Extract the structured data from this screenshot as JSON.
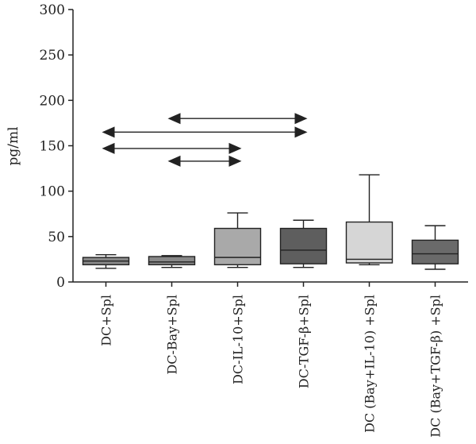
{
  "chart_data": {
    "type": "box",
    "ylabel": "pg/ml",
    "ylim": [
      0,
      300
    ],
    "yticks": [
      0,
      50,
      100,
      150,
      200,
      250,
      300
    ],
    "grid": false,
    "legend": "none",
    "categories": [
      "DC+Spl",
      "DC-Bay+Spl",
      "DC-IL-10+Spl",
      "DC-TGF-β+Spl",
      "DC (Bay+IL-10) +Spl",
      "DC (Bay+TGF-β) +Spl"
    ],
    "boxes": [
      {
        "min": 15,
        "q1": 19,
        "median": 23,
        "q3": 27,
        "max": 30,
        "color": "#888888"
      },
      {
        "min": 16,
        "q1": 19,
        "median": 22,
        "q3": 28,
        "max": 29,
        "color": "#888888"
      },
      {
        "min": 16,
        "q1": 19,
        "median": 27,
        "q3": 59,
        "max": 76,
        "color": "#a9a9a9"
      },
      {
        "min": 16,
        "q1": 20,
        "median": 35,
        "q3": 59,
        "max": 68,
        "color": "#5e5e5e"
      },
      {
        "min": 19,
        "q1": 21,
        "median": 25,
        "q3": 66,
        "max": 118,
        "color": "#d6d6d6"
      },
      {
        "min": 14,
        "q1": 20,
        "median": 31,
        "q3": 46,
        "max": 62,
        "color": "#6a6a6a"
      }
    ],
    "comparisons": [
      {
        "from": 1,
        "to": 3,
        "y": 180
      },
      {
        "from": 0,
        "to": 3,
        "y": 165
      },
      {
        "from": 0,
        "to": 2,
        "y": 147
      },
      {
        "from": 1,
        "to": 2,
        "y": 133
      }
    ]
  }
}
